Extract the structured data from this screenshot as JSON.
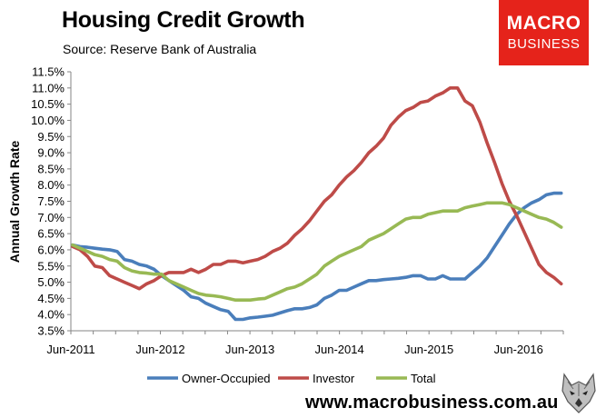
{
  "header": {
    "title": "Housing Credit Growth",
    "subtitle": "Source: Reserve Bank of Australia"
  },
  "logo": {
    "line1": "MACRO",
    "line2": "BUSINESS"
  },
  "footer": {
    "url": "www.macrobusiness.com.au"
  },
  "colors": {
    "owner_occupied": "#4a7ebb",
    "investor": "#be4b48",
    "total": "#98b954",
    "logo_bg": "#e5231b",
    "axis": "#868686"
  },
  "chart_data": {
    "type": "line",
    "ylabel": "Annual Growth Rate",
    "xlabel": "",
    "ylim": [
      3.5,
      11.5
    ],
    "yticks": [
      "3.5%",
      "4.0%",
      "4.5%",
      "5.0%",
      "5.5%",
      "6.0%",
      "6.5%",
      "7.0%",
      "7.5%",
      "8.0%",
      "8.5%",
      "9.0%",
      "9.5%",
      "10.0%",
      "10.5%",
      "11.0%",
      "11.5%"
    ],
    "xticks": [
      "Jun-2011",
      "Jun-2012",
      "Jun-2013",
      "Jun-2014",
      "Jun-2015",
      "Jun-2016"
    ],
    "x_start": "Jun-2011",
    "x_end": "Jun-2016",
    "grid": false,
    "legend": "bottom",
    "series": [
      {
        "name": "Owner-Occupied",
        "values": [
          6.15,
          6.1,
          6.08,
          6.05,
          6.02,
          6.0,
          5.95,
          5.7,
          5.65,
          5.55,
          5.5,
          5.4,
          5.2,
          5.05,
          4.9,
          4.75,
          4.55,
          4.5,
          4.35,
          4.25,
          4.15,
          4.1,
          3.85,
          3.85,
          3.9,
          3.92,
          3.95,
          3.98,
          4.05,
          4.12,
          4.18,
          4.18,
          4.22,
          4.3,
          4.5,
          4.6,
          4.75,
          4.75,
          4.85,
          4.95,
          5.05,
          5.05,
          5.08,
          5.1,
          5.12,
          5.15,
          5.2,
          5.2,
          5.1,
          5.1,
          5.2,
          5.1,
          5.1,
          5.1,
          5.3,
          5.5,
          5.75,
          6.1,
          6.45,
          6.8,
          7.1,
          7.3,
          7.45,
          7.55,
          7.7,
          7.75,
          7.75
        ]
      },
      {
        "name": "Investor",
        "values": [
          6.1,
          6.0,
          5.8,
          5.5,
          5.45,
          5.2,
          5.1,
          5.0,
          4.9,
          4.8,
          4.95,
          5.05,
          5.2,
          5.3,
          5.3,
          5.3,
          5.4,
          5.3,
          5.4,
          5.55,
          5.55,
          5.65,
          5.65,
          5.6,
          5.65,
          5.7,
          5.8,
          5.95,
          6.05,
          6.2,
          6.45,
          6.65,
          6.9,
          7.2,
          7.5,
          7.7,
          8.0,
          8.25,
          8.45,
          8.7,
          9.0,
          9.2,
          9.45,
          9.85,
          10.1,
          10.3,
          10.4,
          10.55,
          10.6,
          10.75,
          10.85,
          11.0,
          11.0,
          10.6,
          10.45,
          9.95,
          9.3,
          8.7,
          8.05,
          7.5,
          7.05,
          6.55,
          6.05,
          5.55,
          5.3,
          5.15,
          4.95
        ]
      },
      {
        "name": "Total",
        "values": [
          6.15,
          6.05,
          5.95,
          5.85,
          5.8,
          5.7,
          5.65,
          5.45,
          5.35,
          5.3,
          5.28,
          5.25,
          5.25,
          5.05,
          4.95,
          4.85,
          4.75,
          4.65,
          4.6,
          4.58,
          4.55,
          4.5,
          4.45,
          4.45,
          4.45,
          4.48,
          4.5,
          4.6,
          4.7,
          4.8,
          4.85,
          4.95,
          5.1,
          5.25,
          5.5,
          5.65,
          5.8,
          5.9,
          6.0,
          6.1,
          6.3,
          6.4,
          6.5,
          6.65,
          6.8,
          6.95,
          7.0,
          7.0,
          7.1,
          7.15,
          7.2,
          7.2,
          7.2,
          7.3,
          7.35,
          7.4,
          7.45,
          7.45,
          7.45,
          7.4,
          7.3,
          7.2,
          7.1,
          7.0,
          6.95,
          6.85,
          6.7
        ]
      }
    ]
  }
}
